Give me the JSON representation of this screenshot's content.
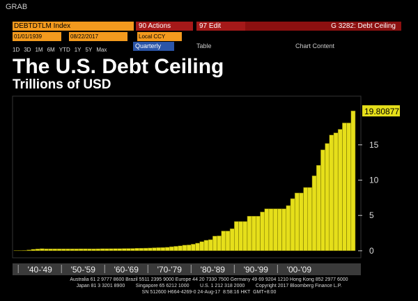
{
  "header": {
    "app": "GRAB",
    "ticker": "DEBTDTLM Index",
    "actions": "90 Actions",
    "edit": "97 Edit",
    "function": "G 3282: Debt Ceiling",
    "start_date": "01/01/1939",
    "end_date": "08/22/2017",
    "currency": "Local CCY",
    "periods": [
      "1D",
      "3D",
      "1M",
      "6M",
      "YTD",
      "1Y",
      "5Y",
      "Max"
    ],
    "frequency": "Quarterly",
    "table": "Table",
    "chart_content": "Chart Content"
  },
  "chart_data": {
    "type": "bar",
    "title": "The U.S. Debt Ceiling",
    "subtitle": "Trillions of USD",
    "color": "#e6df1a",
    "categories": [
      null,
      "'40-'49",
      null,
      null,
      null,
      null,
      null,
      null,
      null,
      null,
      null,
      "'50-'59",
      null,
      null,
      null,
      null,
      null,
      null,
      null,
      null,
      null,
      "'60-'69",
      null,
      null,
      null,
      null,
      null,
      null,
      null,
      null,
      null,
      "'70-'79",
      null,
      null,
      null,
      null,
      null,
      null,
      null,
      null,
      null,
      "'80-'89",
      null,
      null,
      null,
      null,
      null,
      null,
      null,
      null,
      null,
      "'90-'99",
      null,
      null,
      null,
      null,
      null,
      null,
      null,
      null,
      null,
      "'00-'09",
      null,
      null,
      null,
      null,
      null,
      null,
      null,
      null,
      null,
      null,
      null,
      null,
      null,
      null,
      null,
      null,
      null
    ],
    "values": [
      0.045,
      0.049,
      0.065,
      0.125,
      0.21,
      0.26,
      0.3,
      0.275,
      0.275,
      0.275,
      0.275,
      0.275,
      0.275,
      0.275,
      0.275,
      0.281,
      0.281,
      0.278,
      0.275,
      0.283,
      0.295,
      0.293,
      0.298,
      0.308,
      0.309,
      0.324,
      0.328,
      0.33,
      0.358,
      0.365,
      0.377,
      0.395,
      0.43,
      0.45,
      0.465,
      0.495,
      0.577,
      0.636,
      0.7,
      0.798,
      0.83,
      0.935,
      1.079,
      1.29,
      1.49,
      1.573,
      2.079,
      2.111,
      2.8,
      2.8,
      3.123,
      4.145,
      4.145,
      4.145,
      4.9,
      4.9,
      4.9,
      5.5,
      5.95,
      5.95,
      5.95,
      5.95,
      5.95,
      6.4,
      7.384,
      8.184,
      8.184,
      8.965,
      8.965,
      10.615,
      12.104,
      14.294,
      15.194,
      16.394,
      16.699,
      17.2,
      18.1,
      18.1,
      19.80877
    ],
    "ylim": [
      -0.8,
      21.2
    ],
    "yticks": [
      0,
      5,
      10,
      15
    ],
    "grid": false
  },
  "footer": {
    "lines": [
      "Australia 61 2 9777 8600 Brazil 5511 2395 9000 Europe 44 20 7330 7500 Germany 49 69 9204 1210 Hong Kong 852 2977 6000",
      "Japan 81 3 3201 8900        Singapore 65 6212 1000        U.S. 1 212 318 2000        Copyright 2017 Bloomberg Finance L.P.",
      "SN 512600 H664-4269-0 24-Aug-17  8:58:16 HKT  GMT+8:00"
    ]
  }
}
